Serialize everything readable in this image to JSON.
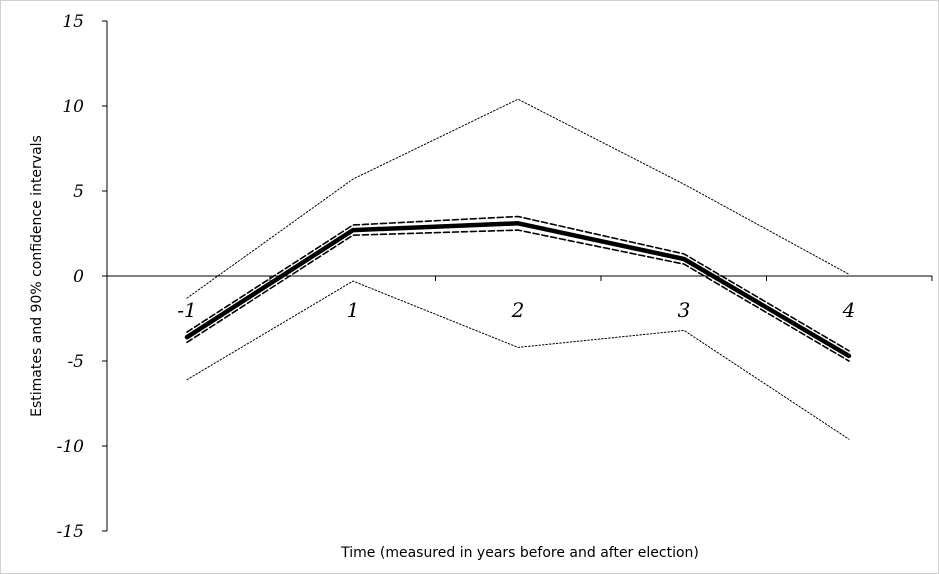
{
  "chart_data": {
    "type": "line",
    "title": "",
    "xlabel": "Time (measured in years before and after election)",
    "ylabel": "Estimates and 90% confidence intervals",
    "categories": [
      "-1",
      "1",
      "2",
      "3",
      "4"
    ],
    "ylim": [
      -15,
      15
    ],
    "yticks": [
      "15",
      "10",
      "5",
      "0",
      "-5",
      "-10",
      "-15"
    ],
    "grid": false,
    "legend": "none",
    "series": [
      {
        "style": "solid-thick",
        "color": "#000000",
        "values": [
          -3.6,
          2.7,
          3.1,
          1.0,
          -4.7
        ]
      },
      {
        "style": "dashed",
        "color": "#000000",
        "values": [
          -3.3,
          3.0,
          3.5,
          1.3,
          -4.4
        ]
      },
      {
        "style": "dashed",
        "color": "#000000",
        "values": [
          -3.9,
          2.4,
          2.7,
          0.7,
          -5.0
        ]
      },
      {
        "style": "dotted",
        "color": "#000000",
        "values": [
          -1.3,
          5.7,
          10.4,
          5.4,
          0.1
        ]
      },
      {
        "style": "dotted",
        "color": "#000000",
        "values": [
          -6.1,
          -0.3,
          -4.2,
          -3.2,
          -9.6
        ]
      }
    ]
  }
}
